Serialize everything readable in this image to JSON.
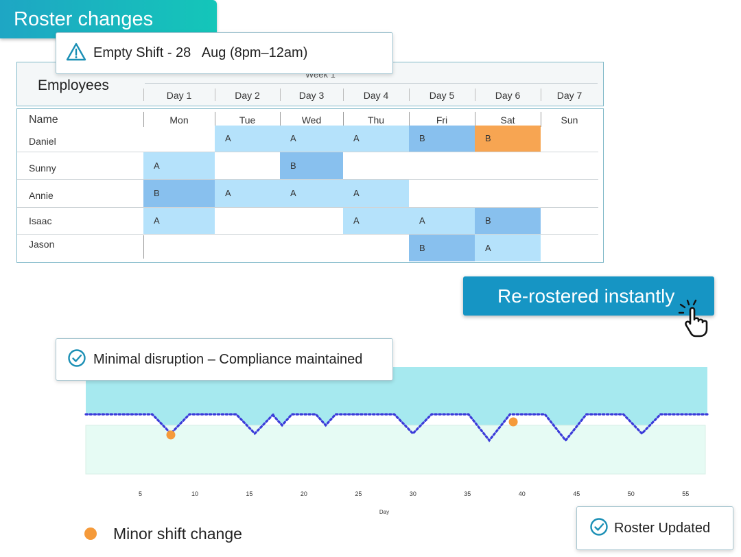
{
  "badge": {
    "title": "Roster changes"
  },
  "alert": {
    "icon": "warning-icon",
    "text": "Empty Shift - 28   Aug (8pm–12am)"
  },
  "roster": {
    "header_label": "Employees",
    "week_label": "Week 1",
    "days": [
      "Day 1",
      "Day 2",
      "Day 3",
      "Day 4",
      "Day 5",
      "Day 6",
      "Day 7"
    ],
    "name_header": "Name",
    "weekdays": [
      "Mon",
      "Tue",
      "Wed",
      "Thu",
      "Fri",
      "Sat",
      "Sun"
    ],
    "rows": [
      {
        "name": "Daniel",
        "shifts": [
          "",
          "A",
          "A",
          "A",
          "B",
          "B",
          ""
        ],
        "highlight_day": 5
      },
      {
        "name": "Sunny",
        "shifts": [
          "A",
          "",
          "B",
          "",
          "",
          "",
          ""
        ]
      },
      {
        "name": "Annie",
        "shifts": [
          "B",
          "A",
          "A",
          "A",
          "",
          "",
          ""
        ]
      },
      {
        "name": "Isaac",
        "shifts": [
          "A",
          "",
          "",
          "A",
          "A",
          "B",
          ""
        ]
      },
      {
        "name": "Jason",
        "shifts": [
          "",
          "",
          "",
          "",
          "B",
          "A",
          ""
        ]
      }
    ],
    "colors": {
      "A": "#b5e2fb",
      "B": "#88c0ee",
      "changed": "#f7a552"
    }
  },
  "rerostered": {
    "label": "Re-rostered instantly",
    "icon": "hand-pointer-click-icon"
  },
  "compliance": {
    "icon": "check-circle-icon",
    "text": "Minimal disruption – Compliance maintained"
  },
  "chart_data": {
    "type": "area",
    "xlabel": "Day",
    "ylabel": "",
    "xlim": [
      0,
      57
    ],
    "x_ticks": [
      5,
      10,
      15,
      20,
      25,
      30,
      35,
      40,
      45,
      50,
      55
    ],
    "series": [
      {
        "values_note": "upper band",
        "color": "#a6e9ef"
      },
      {
        "values_note": "lower band",
        "color": "#e6fbf4"
      }
    ],
    "line": {
      "color": "#3b3bd9",
      "style": "dotted",
      "dips": [
        {
          "x": 7.8,
          "depth": "medium"
        },
        {
          "x": 15.5,
          "depth": "medium"
        },
        {
          "x": 18,
          "depth": "small"
        },
        {
          "x": 22,
          "depth": "small"
        },
        {
          "x": 30,
          "depth": "medium"
        },
        {
          "x": 37,
          "depth": "large"
        },
        {
          "x": 44,
          "depth": "large"
        },
        {
          "x": 51,
          "depth": "medium"
        }
      ]
    },
    "markers": [
      {
        "x": 7.8,
        "label": "Minor shift change"
      },
      {
        "x": 39.2,
        "label": "Minor shift change"
      }
    ],
    "marker_color": "#f59a3a",
    "legend": [
      {
        "label": "Minor shift change",
        "color": "#f59a3a"
      }
    ]
  },
  "updated": {
    "icon": "check-circle-icon",
    "text": "Roster Updated"
  }
}
